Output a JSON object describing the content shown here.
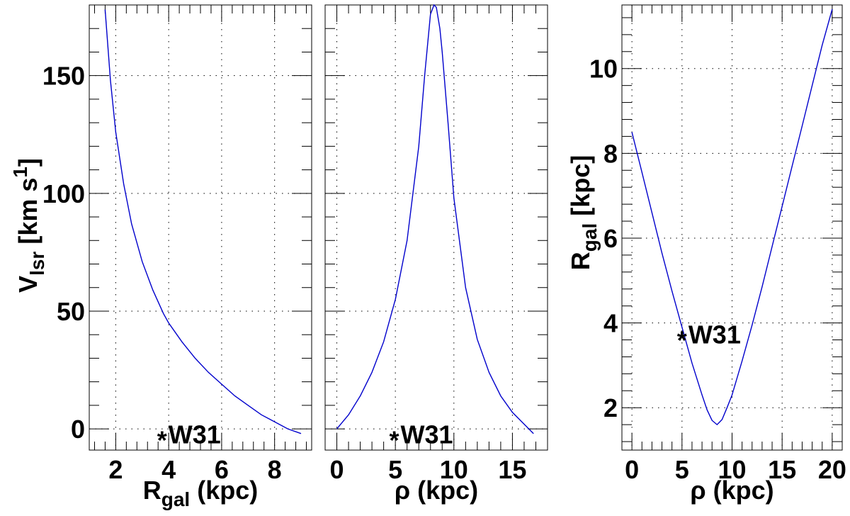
{
  "chart_data": [
    {
      "type": "line",
      "title": "",
      "xlabel": {
        "main": "R",
        "sub": "gal",
        "rest": " (kpc)"
      },
      "ylabel": {
        "main": "V",
        "sub": "lsr",
        "rest": " [km s",
        "sup": "1",
        "close": "]"
      },
      "xlim": [
        1.0,
        9.4
      ],
      "ylim": [
        -9,
        180
      ],
      "xticks": [
        2,
        4,
        6,
        8
      ],
      "yticks": [
        0,
        50,
        100,
        150
      ],
      "grid": true,
      "color": "#0000cc",
      "series": [
        {
          "x": [
            1.6,
            1.8,
            2.0,
            2.3,
            2.6,
            3.0,
            3.4,
            3.8,
            4.0,
            4.5,
            5.0,
            5.5,
            6.0,
            6.5,
            7.0,
            7.5,
            8.0,
            8.5,
            9.0
          ],
          "y": [
            178,
            148,
            126,
            104,
            87,
            71,
            59,
            49,
            45,
            37,
            30,
            24,
            19,
            14,
            10,
            6,
            3,
            0,
            -2
          ]
        }
      ],
      "annotation": {
        "marker": "*",
        "label": "W31",
        "x": 3.75,
        "y": -2
      }
    },
    {
      "type": "line",
      "title": "",
      "xlabel": {
        "main": "ρ",
        "sub": "",
        "rest": " (kpc)"
      },
      "ylabel": null,
      "xlim": [
        -1,
        18
      ],
      "ylim": [
        -9,
        180
      ],
      "xticks": [
        0,
        5,
        10,
        15
      ],
      "yticks": [
        0,
        50,
        100,
        150
      ],
      "grid": true,
      "color": "#0000cc",
      "series": [
        {
          "x": [
            0,
            1,
            2,
            3,
            4,
            5,
            6,
            7,
            7.5,
            8,
            8.3,
            8.5,
            8.8,
            9,
            9.5,
            10,
            11,
            12,
            13,
            14,
            15,
            16,
            16.8
          ],
          "y": [
            0,
            6,
            14,
            24,
            37,
            55,
            80,
            120,
            150,
            176,
            180,
            179,
            170,
            160,
            130,
            98,
            60,
            38,
            24,
            14,
            7,
            2,
            -2
          ]
        }
      ],
      "annotation": {
        "marker": "*",
        "label": "W31",
        "x": 4.9,
        "y": -2
      }
    },
    {
      "type": "line",
      "title": "",
      "xlabel": {
        "main": "ρ",
        "sub": "",
        "rest": " (kpc)"
      },
      "ylabel": {
        "main": "R",
        "sub": "gal",
        "rest": " [kpc]",
        "sup": "",
        "close": ""
      },
      "xlim": [
        -1,
        21
      ],
      "ylim": [
        1.0,
        11.5
      ],
      "xticks": [
        0,
        5,
        10,
        15,
        20
      ],
      "yticks": [
        2,
        4,
        6,
        8,
        10
      ],
      "grid": true,
      "color": "#0000cc",
      "series": [
        {
          "x": [
            0,
            1,
            2,
            3,
            4,
            5,
            6,
            7,
            7.5,
            8,
            8.5,
            9,
            9.5,
            10,
            11,
            12,
            13,
            14,
            15,
            16,
            17,
            18,
            19,
            20
          ],
          "y": [
            8.5,
            7.55,
            6.6,
            5.65,
            4.75,
            3.9,
            3.05,
            2.3,
            1.95,
            1.7,
            1.6,
            1.72,
            2.0,
            2.3,
            3.1,
            3.95,
            4.85,
            5.8,
            6.75,
            7.7,
            8.65,
            9.6,
            10.55,
            11.4
          ]
        }
      ],
      "annotation": {
        "marker": "*",
        "label": "W31",
        "x": 5.0,
        "y": 3.75
      }
    }
  ]
}
